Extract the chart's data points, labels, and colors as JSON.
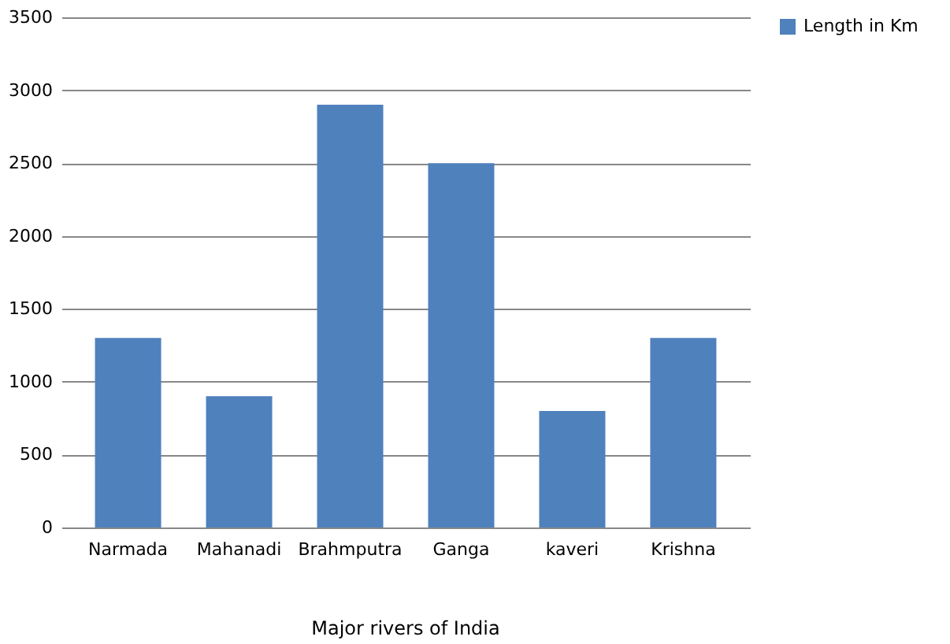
{
  "chart_data": {
    "type": "bar",
    "title": "Major rivers of India",
    "categories": [
      "Narmada",
      "Mahanadi",
      "Brahmputra",
      "Ganga",
      "kaveri",
      "Krishna"
    ],
    "series": [
      {
        "name": "Length in Km",
        "color": "#4f81bd",
        "values": [
          1300,
          900,
          2900,
          2500,
          800,
          1300
        ]
      }
    ],
    "ylim": [
      0,
      3500
    ],
    "yticks": [
      0,
      500,
      1000,
      1500,
      2000,
      2500,
      3000,
      3500
    ],
    "grid": "y",
    "legend": "right"
  }
}
